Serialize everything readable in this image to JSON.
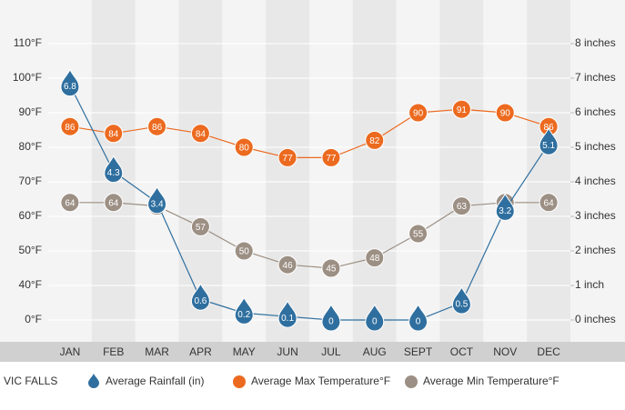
{
  "chart_data": {
    "type": "line",
    "title": "VIC FALLS",
    "categories": [
      "JAN",
      "FEB",
      "MAR",
      "APR",
      "MAY",
      "JUN",
      "JUL",
      "AUG",
      "SEPT",
      "OCT",
      "NOV",
      "DEC"
    ],
    "series": [
      {
        "name": "Average Rainfall (in)",
        "color": "#2f6f9f",
        "axis": "y2",
        "marker": "drop",
        "values": [
          6.8,
          4.3,
          3.4,
          0.6,
          0.2,
          0.1,
          0,
          0,
          0,
          0.5,
          3.2,
          5.1
        ]
      },
      {
        "name": "Average Max Temperature°F",
        "color": "#ec6a1f",
        "marker": "circle",
        "values": [
          86,
          84,
          86,
          84,
          80,
          77,
          77,
          82,
          90,
          91,
          90,
          86
        ]
      },
      {
        "name": "Average Min Temperature°F",
        "color": "#9c8f84",
        "marker": "circle",
        "values": [
          64,
          64,
          63,
          57,
          50,
          46,
          45,
          48,
          55,
          63,
          64,
          64
        ]
      }
    ],
    "ylim": [
      0,
      110
    ],
    "yticks": [
      {
        "value": 0,
        "label": "0°F"
      },
      {
        "value": 40,
        "label": "40°F"
      },
      {
        "value": 50,
        "label": "50°F"
      },
      {
        "value": 60,
        "label": "60°F"
      },
      {
        "value": 70,
        "label": "70°F"
      },
      {
        "value": 80,
        "label": "80°F"
      },
      {
        "value": 90,
        "label": "90°F"
      },
      {
        "value": 100,
        "label": "100°F"
      },
      {
        "value": 110,
        "label": "110°F"
      }
    ],
    "y2lim": [
      0,
      8
    ],
    "y2ticks": [
      {
        "value": 0,
        "label": "0 inches"
      },
      {
        "value": 1,
        "label": "1 inch"
      },
      {
        "value": 2,
        "label": "2 inches"
      },
      {
        "value": 3,
        "label": "3 inches"
      },
      {
        "value": 4,
        "label": "4 inches"
      },
      {
        "value": 5,
        "label": "5 inches"
      },
      {
        "value": 6,
        "label": "6 inches"
      },
      {
        "value": 7,
        "label": "7 inches"
      },
      {
        "value": 8,
        "label": "8 inches"
      }
    ],
    "grid": true
  }
}
